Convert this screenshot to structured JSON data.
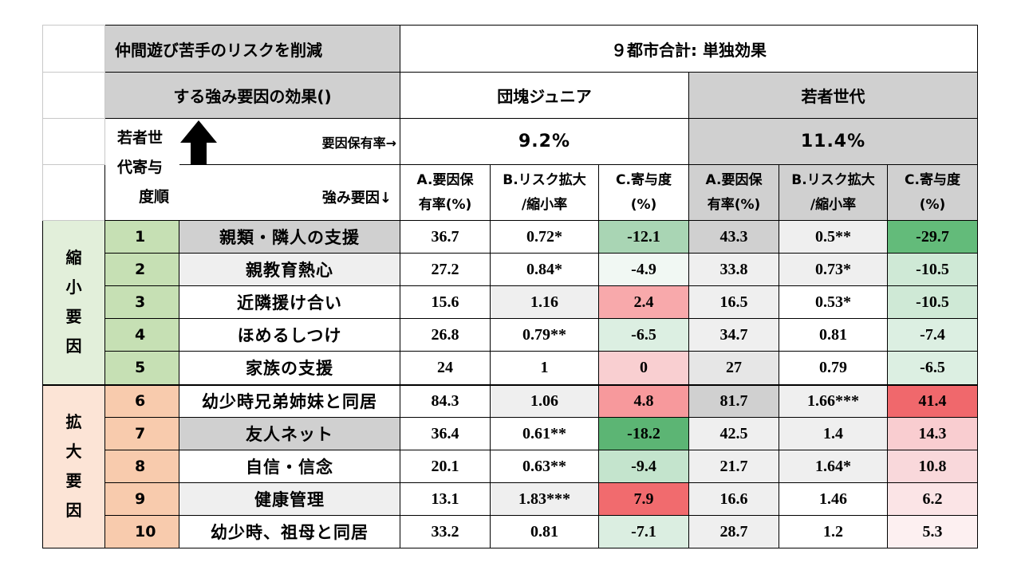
{
  "header": {
    "title_line1": "仲間遊び苦手のリスクを削減",
    "title_line2": "する強み要因の効果()",
    "study_title": "９都市合計: 単独効果",
    "group_a": "団塊ジュニア",
    "group_b": "若者世代",
    "rank_label_1": "若者世",
    "rank_label_2": "代寄与",
    "rank_label_3": "度順",
    "prevalence_label": "要因保有率→",
    "factor_label": "強み要因↓",
    "rate_a": "9.2%",
    "rate_b": "11.4%",
    "col_a_1": "A.要因保",
    "col_a_2": "有率(%)",
    "col_b_1": "B.リスク拡大",
    "col_b_2": "/縮小率",
    "col_c_1": "C.寄与度",
    "col_c_2": "(%)"
  },
  "groups": {
    "reduce_label": [
      "縮",
      "小",
      "要",
      "因"
    ],
    "expand_label": [
      "拡",
      "大",
      "要",
      "因"
    ]
  },
  "rows": [
    {
      "rank": "1",
      "factor": "親類・隣人の支援",
      "a1": "36.7",
      "b1": "0.72*",
      "c1": "-12.1",
      "a2": "43.3",
      "b2": "0.5**",
      "c2": "-29.7"
    },
    {
      "rank": "2",
      "factor": "親教育熱心",
      "a1": "27.2",
      "b1": "0.84*",
      "c1": "-4.9",
      "a2": "33.8",
      "b2": "0.73*",
      "c2": "-10.5"
    },
    {
      "rank": "3",
      "factor": "近隣援け合い",
      "a1": "15.6",
      "b1": "1.16",
      "c1": "2.4",
      "a2": "16.5",
      "b2": "0.53*",
      "c2": "-10.5"
    },
    {
      "rank": "4",
      "factor": "ほめるしつけ",
      "a1": "26.8",
      "b1": "0.79**",
      "c1": "-6.5",
      "a2": "34.7",
      "b2": "0.81",
      "c2": "-7.4"
    },
    {
      "rank": "5",
      "factor": "家族の支援",
      "a1": "24",
      "b1": "1",
      "c1": "0",
      "a2": "27",
      "b2": "0.79",
      "c2": "-6.5"
    },
    {
      "rank": "6",
      "factor": "幼少時兄弟姉妹と同居",
      "a1": "84.3",
      "b1": "1.06",
      "c1": "4.8",
      "a2": "81.7",
      "b2": "1.66***",
      "c2": "41.4"
    },
    {
      "rank": "7",
      "factor": "友人ネット",
      "a1": "36.4",
      "b1": "0.61**",
      "c1": "-18.2",
      "a2": "42.5",
      "b2": "1.4",
      "c2": "14.3"
    },
    {
      "rank": "8",
      "factor": "自信・信念",
      "a1": "20.1",
      "b1": "0.63**",
      "c1": "-9.4",
      "a2": "21.7",
      "b2": "1.64*",
      "c2": "10.8"
    },
    {
      "rank": "9",
      "factor": "健康管理",
      "a1": "13.1",
      "b1": "1.83***",
      "c1": "7.9",
      "a2": "16.6",
      "b2": "1.46",
      "c2": "6.2"
    },
    {
      "rank": "10",
      "factor": "幼少時、祖母と同居",
      "a1": "33.2",
      "b1": "0.81",
      "c1": "-7.1",
      "a2": "28.7",
      "b2": "1.2",
      "c2": "5.3"
    }
  ],
  "colors": {
    "c1": [
      "#a9d5b4",
      "#f1f8f3",
      "#f8a9ab",
      "#dcefe2",
      "#f9cfd1",
      "#f7999c",
      "#5cb574",
      "#c4e4cd",
      "#f16b6e",
      "#dbeee1"
    ],
    "c2": [
      "#63bb7a",
      "#cfe9d6",
      "#cfe9d6",
      "#dcefe2",
      "#dcefe2",
      "#f0686c",
      "#f9cdd0",
      "#f9d8db",
      "#fbe4e6",
      "#fdf0f1"
    ],
    "factor_bg": [
      "#d0d0d0",
      "#efefef",
      "#ffffff",
      "#ffffff",
      "#ffffff",
      "#ffffff",
      "#d0d0d0",
      "#ffffff",
      "#efefef",
      "#ffffff"
    ],
    "b1_bg": [
      "#ffffff",
      "#ffffff",
      "#efefef",
      "#ffffff",
      "#ffffff",
      "#efefef",
      "#ffffff",
      "#ffffff",
      "#efefef",
      "#ffffff"
    ],
    "a2_bg": [
      "#d0d0d0",
      "#efefef",
      "#efefef",
      "#efefef",
      "#e6e6e6",
      "#d0d0d0",
      "#efefef",
      "#efefef",
      "#efefef",
      "#efefef"
    ],
    "b2_bg": [
      "#efefef",
      "#efefef",
      "#ffffff",
      "#ffffff",
      "#ffffff",
      "#efefef",
      "#efefef",
      "#efefef",
      "#ffffff",
      "#ffffff"
    ]
  }
}
